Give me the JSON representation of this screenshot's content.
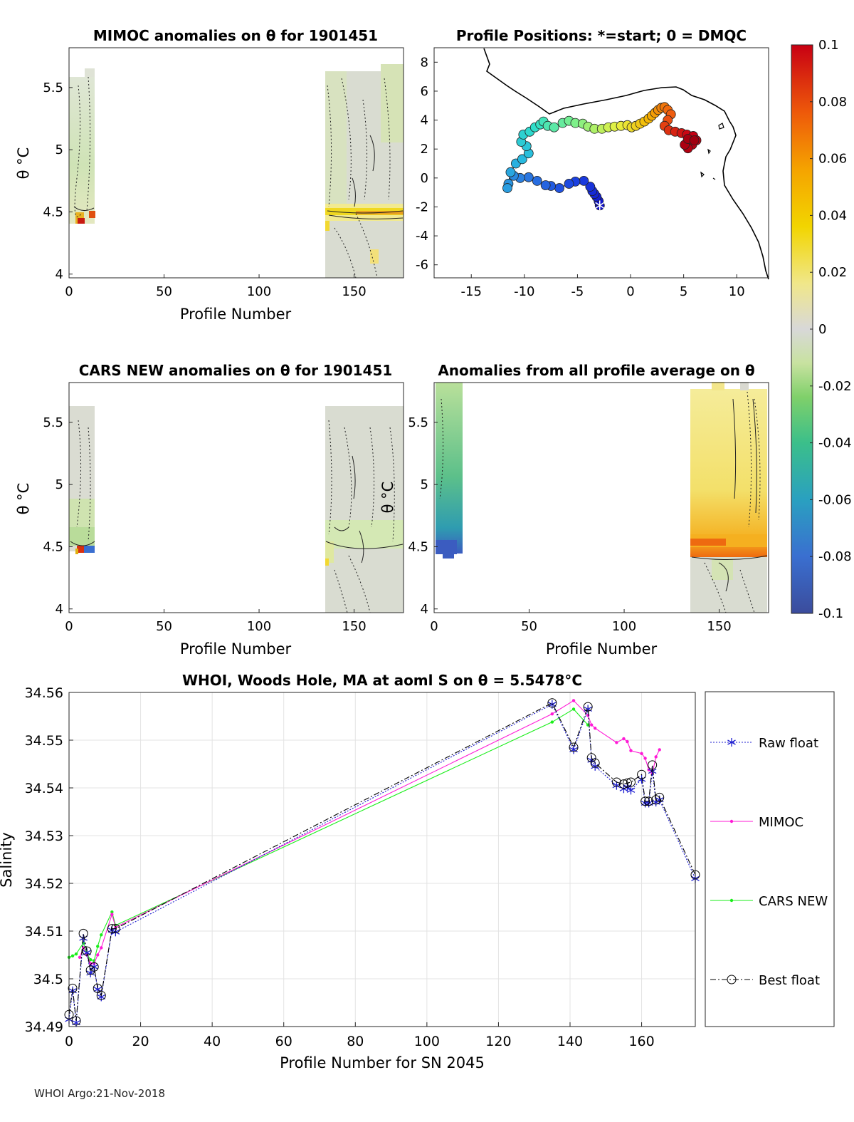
{
  "footer": "WHOI Argo:21-Nov-2018",
  "panels": {
    "mimoc": {
      "title": "MIMOC anomalies on θ  for 1901451",
      "xlabel": "Profile Number",
      "ylabel": "θ °C",
      "xticks": [
        "0",
        "50",
        "100",
        "150"
      ],
      "yticks": [
        "4",
        "4.5",
        "5",
        "5.5"
      ],
      "xlim": [
        0,
        176
      ],
      "ylim": [
        3.97,
        5.82
      ]
    },
    "positions": {
      "title": "Profile Positions: *=start; 0 = DMQC",
      "xticks": [
        "-15",
        "-10",
        "-5",
        "0",
        "5",
        "10"
      ],
      "yticks": [
        "-6",
        "-4",
        "-2",
        "0",
        "2",
        "4",
        "6",
        "8"
      ],
      "xlim": [
        -18.5,
        13.0
      ],
      "ylim": [
        -6.9,
        9.0
      ]
    },
    "cars": {
      "title": "CARS NEW anomalies on θ for 1901451",
      "xlabel": "Profile Number",
      "ylabel": "θ °C",
      "xticks": [
        "0",
        "50",
        "100",
        "150"
      ],
      "yticks": [
        "4",
        "4.5",
        "5",
        "5.5"
      ],
      "xlim": [
        0,
        176
      ],
      "ylim": [
        3.97,
        5.82
      ]
    },
    "avg": {
      "title": "Anomalies from all profile average on θ",
      "xlabel": "Profile Number",
      "ylabel": "θ °C",
      "xticks": [
        "0",
        "50",
        "100",
        "150"
      ],
      "yticks": [
        "4",
        "4.5",
        "5",
        "5.5"
      ],
      "xlim": [
        0,
        176
      ],
      "ylim": [
        3.97,
        5.82
      ]
    }
  },
  "colorbar": {
    "ticks": [
      "0.1",
      "0.08",
      "0.06",
      "0.04",
      "0.02",
      "0",
      "-0.02",
      "-0.04",
      "-0.06",
      "-0.08",
      "-0.1"
    ],
    "colors": [
      "#3b4c9c",
      "#3a6fd0",
      "#2aa0c0",
      "#3bbf8a",
      "#7fd06a",
      "#c8e2a0",
      "#d8d8d8",
      "#f0e78a",
      "#f2d500",
      "#f5a400",
      "#ee5a0a",
      "#c80013"
    ]
  },
  "chart_data": {
    "type": "line",
    "title": "WHOI, Woods Hole, MA at aoml S on θ = 5.5478°C",
    "xlabel": "Profile Number for SN 2045",
    "ylabel": "Salinity",
    "xlim": [
      0,
      175
    ],
    "ylim": [
      34.49,
      34.56
    ],
    "xticks": [
      "0",
      "20",
      "40",
      "60",
      "80",
      "100",
      "120",
      "140",
      "160"
    ],
    "yticks": [
      "34.49",
      "34.5",
      "34.51",
      "34.52",
      "34.53",
      "34.54",
      "34.55",
      "34.56"
    ],
    "grid": true,
    "legend_position": "outside-right",
    "series": [
      {
        "name": "Raw float",
        "color": "#1f1fd0",
        "x": [
          0,
          1,
          2,
          4,
          5,
          6,
          7,
          8,
          9,
          12,
          13,
          135,
          141,
          145,
          146,
          147,
          153,
          155,
          156,
          157,
          160,
          161,
          162,
          163,
          164,
          165,
          175
        ],
        "y": [
          34.4915,
          34.4975,
          34.4908,
          34.5085,
          34.5055,
          34.5012,
          34.5025,
          34.4978,
          34.4962,
          34.5102,
          34.5098,
          34.5575,
          34.548,
          34.5565,
          34.5458,
          34.5445,
          34.5405,
          34.5398,
          34.5402,
          34.5395,
          34.5418,
          34.5368,
          34.5368,
          34.5435,
          34.537,
          34.5375,
          34.521
        ]
      },
      {
        "name": "MIMOC",
        "color": "#ff1ad6",
        "x": [
          3,
          4,
          5,
          6,
          7,
          8,
          9,
          12,
          13,
          135,
          141,
          145,
          146,
          147,
          153,
          155,
          156,
          157,
          160,
          161,
          162,
          163,
          164,
          165
        ],
        "y": [
          34.5045,
          34.5065,
          34.505,
          34.5032,
          34.5032,
          34.505,
          34.5065,
          34.5135,
          34.5108,
          34.5555,
          34.5583,
          34.5552,
          34.5532,
          34.5525,
          34.5495,
          34.5503,
          34.5497,
          34.5478,
          34.5472,
          34.5462,
          34.5438,
          34.543,
          34.5465,
          34.548
        ]
      },
      {
        "name": "CARS NEW",
        "color": "#1aee1a",
        "x": [
          0,
          1,
          2,
          4,
          5,
          6,
          7,
          8,
          9,
          12,
          13,
          135,
          141,
          145
        ],
        "y": [
          34.5045,
          34.5048,
          34.5052,
          34.5075,
          34.5052,
          34.504,
          34.5038,
          34.5068,
          34.5092,
          34.514,
          34.5112,
          34.5538,
          34.5565,
          34.5532
        ]
      },
      {
        "name": "Best float",
        "color": "#000000",
        "x": [
          0,
          1,
          2,
          4,
          5,
          6,
          7,
          8,
          9,
          12,
          13,
          135,
          141,
          145,
          146,
          147,
          153,
          155,
          156,
          157,
          160,
          161,
          162,
          163,
          164,
          165,
          175
        ],
        "y": [
          34.4925,
          34.498,
          34.4912,
          34.5095,
          34.5058,
          34.5018,
          34.5025,
          34.498,
          34.4965,
          34.5105,
          34.5105,
          34.5578,
          34.5485,
          34.557,
          34.5463,
          34.5452,
          34.5412,
          34.5408,
          34.541,
          34.5412,
          34.5428,
          34.5372,
          34.5372,
          34.5448,
          34.5375,
          34.538,
          34.5218
        ]
      }
    ]
  },
  "positions_data": {
    "track": [
      [
        -2.9,
        -1.9
      ],
      [
        -3.0,
        -1.6
      ],
      [
        -3.2,
        -1.3
      ],
      [
        -3.4,
        -1.1
      ],
      [
        -3.6,
        -0.9
      ],
      [
        -3.8,
        -0.6
      ],
      [
        -4.4,
        -0.2
      ],
      [
        -5.2,
        -0.25
      ],
      [
        -5.8,
        -0.4
      ],
      [
        -6.7,
        -0.7
      ],
      [
        -7.5,
        -0.55
      ],
      [
        -8.0,
        -0.5
      ],
      [
        -8.8,
        -0.2
      ],
      [
        -9.6,
        0.05
      ],
      [
        -10.4,
        0.0
      ],
      [
        -11.0,
        0.15
      ],
      [
        -11.5,
        -0.4
      ],
      [
        -11.6,
        -0.7
      ],
      [
        -11.3,
        0.4
      ],
      [
        -10.8,
        1.0
      ],
      [
        -10.2,
        1.3
      ],
      [
        -9.6,
        1.7
      ],
      [
        -9.8,
        2.2
      ],
      [
        -10.3,
        2.5
      ],
      [
        -10.1,
        3.0
      ],
      [
        -9.5,
        3.2
      ],
      [
        -9.0,
        3.5
      ],
      [
        -8.5,
        3.7
      ],
      [
        -8.2,
        3.9
      ],
      [
        -7.8,
        3.6
      ],
      [
        -7.2,
        3.5
      ],
      [
        -6.4,
        3.8
      ],
      [
        -5.8,
        3.95
      ],
      [
        -5.2,
        3.8
      ],
      [
        -4.5,
        3.75
      ],
      [
        -4.0,
        3.55
      ],
      [
        -3.4,
        3.4
      ],
      [
        -2.7,
        3.4
      ],
      [
        -2.1,
        3.5
      ],
      [
        -1.5,
        3.55
      ],
      [
        -0.9,
        3.6
      ],
      [
        -0.3,
        3.65
      ],
      [
        0.1,
        3.5
      ],
      [
        0.5,
        3.6
      ],
      [
        0.9,
        3.75
      ],
      [
        1.3,
        3.9
      ],
      [
        1.7,
        4.1
      ],
      [
        2.0,
        4.3
      ],
      [
        2.3,
        4.5
      ],
      [
        2.6,
        4.7
      ],
      [
        2.9,
        4.85
      ],
      [
        3.2,
        4.9
      ],
      [
        3.5,
        4.7
      ],
      [
        3.8,
        4.4
      ],
      [
        3.5,
        4.0
      ],
      [
        3.2,
        3.6
      ],
      [
        3.6,
        3.3
      ],
      [
        4.2,
        3.2
      ],
      [
        4.8,
        3.1
      ],
      [
        5.3,
        3.0
      ],
      [
        5.9,
        2.9
      ],
      [
        6.2,
        2.6
      ],
      [
        5.8,
        2.3
      ],
      [
        5.4,
        2.05
      ],
      [
        5.1,
        2.3
      ],
      [
        5.4,
        2.7
      ],
      [
        6.0,
        2.6
      ]
    ]
  }
}
